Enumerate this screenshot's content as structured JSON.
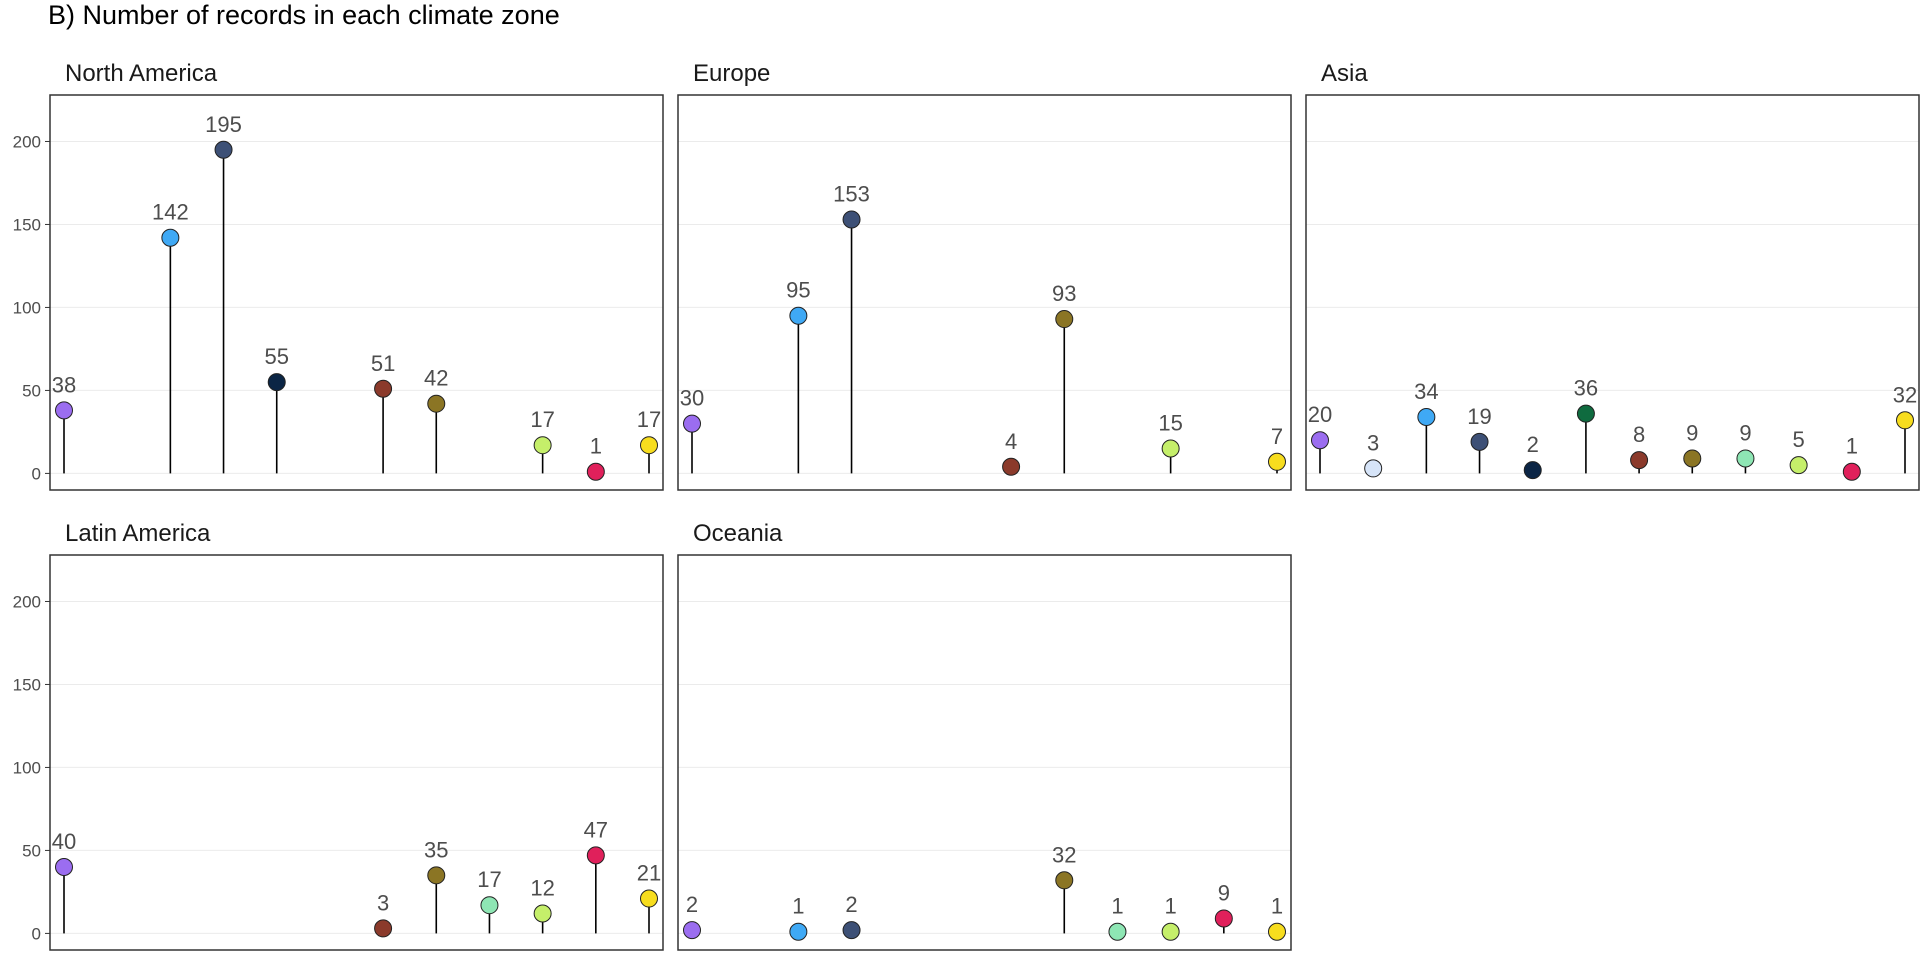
{
  "title": "B) Number of records in each climate zone",
  "y_ticks": [
    "0",
    "50",
    "100",
    "150",
    "200"
  ],
  "chart_data": {
    "type": "lollipop",
    "title": "B) Number of records in each climate zone",
    "xlabel": "",
    "ylabel": "",
    "ylim": [
      -10,
      228
    ],
    "y_ticks": [
      0,
      50,
      100,
      150,
      200
    ],
    "grid": true,
    "x_slots": 12,
    "panels": [
      {
        "name": "North America",
        "points": [
          {
            "slot": 1,
            "value": 38,
            "label": "38",
            "color": "#9B6DF0"
          },
          {
            "slot": 3,
            "value": 142,
            "label": "142",
            "color": "#3FA9F5"
          },
          {
            "slot": 4,
            "value": 195,
            "label": "195",
            "color": "#3D5076"
          },
          {
            "slot": 5,
            "value": 55,
            "label": "55",
            "color": "#0B2545"
          },
          {
            "slot": 7,
            "value": 51,
            "label": "51",
            "color": "#8B3A2B"
          },
          {
            "slot": 8,
            "value": 42,
            "label": "42",
            "color": "#8B7524"
          },
          {
            "slot": 10,
            "value": 17,
            "label": "17",
            "color": "#C5EF6A"
          },
          {
            "slot": 11,
            "value": 1,
            "label": "1",
            "color": "#E0205B"
          },
          {
            "slot": 12,
            "value": 17,
            "label": "17",
            "color": "#F7DD1E"
          }
        ]
      },
      {
        "name": "Europe",
        "points": [
          {
            "slot": 1,
            "value": 30,
            "label": "30",
            "color": "#9B6DF0"
          },
          {
            "slot": 3,
            "value": 95,
            "label": "95",
            "color": "#3FA9F5"
          },
          {
            "slot": 4,
            "value": 153,
            "label": "153",
            "color": "#3D5076"
          },
          {
            "slot": 7,
            "value": 4,
            "label": "4",
            "color": "#8B3A2B"
          },
          {
            "slot": 8,
            "value": 93,
            "label": "93",
            "color": "#8B7524"
          },
          {
            "slot": 10,
            "value": 15,
            "label": "15",
            "color": "#C5EF6A"
          },
          {
            "slot": 12,
            "value": 7,
            "label": "7",
            "color": "#F7DD1E"
          }
        ]
      },
      {
        "name": "Asia",
        "points": [
          {
            "slot": 1,
            "value": 20,
            "label": "20",
            "color": "#9B6DF0"
          },
          {
            "slot": 2,
            "value": 3,
            "label": "3",
            "color": "#D6E4F8"
          },
          {
            "slot": 3,
            "value": 34,
            "label": "34",
            "color": "#3FA9F5"
          },
          {
            "slot": 4,
            "value": 19,
            "label": "19",
            "color": "#3D5076"
          },
          {
            "slot": 5,
            "value": 2,
            "label": "2",
            "color": "#0B2545"
          },
          {
            "slot": 6,
            "value": 36,
            "label": "36",
            "color": "#0F6B3F"
          },
          {
            "slot": 7,
            "value": 8,
            "label": "8",
            "color": "#8B3A2B"
          },
          {
            "slot": 8,
            "value": 9,
            "label": "9",
            "color": "#8B7524"
          },
          {
            "slot": 9,
            "value": 9,
            "label": "9",
            "color": "#8EE6B4"
          },
          {
            "slot": 10,
            "value": 5,
            "label": "5",
            "color": "#C5EF6A"
          },
          {
            "slot": 11,
            "value": 1,
            "label": "1",
            "color": "#E0205B"
          },
          {
            "slot": 12,
            "value": 32,
            "label": "32",
            "color": "#F7DD1E"
          }
        ]
      },
      {
        "name": "Latin America",
        "points": [
          {
            "slot": 1,
            "value": 40,
            "label": "40",
            "color": "#9B6DF0"
          },
          {
            "slot": 7,
            "value": 3,
            "label": "3",
            "color": "#8B3A2B"
          },
          {
            "slot": 8,
            "value": 35,
            "label": "35",
            "color": "#8B7524"
          },
          {
            "slot": 9,
            "value": 17,
            "label": "17",
            "color": "#8EE6B4"
          },
          {
            "slot": 10,
            "value": 12,
            "label": "12",
            "color": "#C5EF6A"
          },
          {
            "slot": 11,
            "value": 47,
            "label": "47",
            "color": "#E0205B"
          },
          {
            "slot": 12,
            "value": 21,
            "label": "21",
            "color": "#F7DD1E"
          }
        ]
      },
      {
        "name": "Oceania",
        "points": [
          {
            "slot": 1,
            "value": 2,
            "label": "2",
            "color": "#9B6DF0"
          },
          {
            "slot": 3,
            "value": 1,
            "label": "1",
            "color": "#3FA9F5"
          },
          {
            "slot": 4,
            "value": 2,
            "label": "2",
            "color": "#3D5076"
          },
          {
            "slot": 8,
            "value": 32,
            "label": "32",
            "color": "#8B7524"
          },
          {
            "slot": 9,
            "value": 1,
            "label": "1",
            "color": "#8EE6B4"
          },
          {
            "slot": 10,
            "value": 1,
            "label": "1",
            "color": "#C5EF6A"
          },
          {
            "slot": 11,
            "value": 9,
            "label": "9",
            "color": "#E0205B"
          },
          {
            "slot": 12,
            "value": 1,
            "label": "1",
            "color": "#F7DD1E"
          }
        ]
      }
    ]
  }
}
